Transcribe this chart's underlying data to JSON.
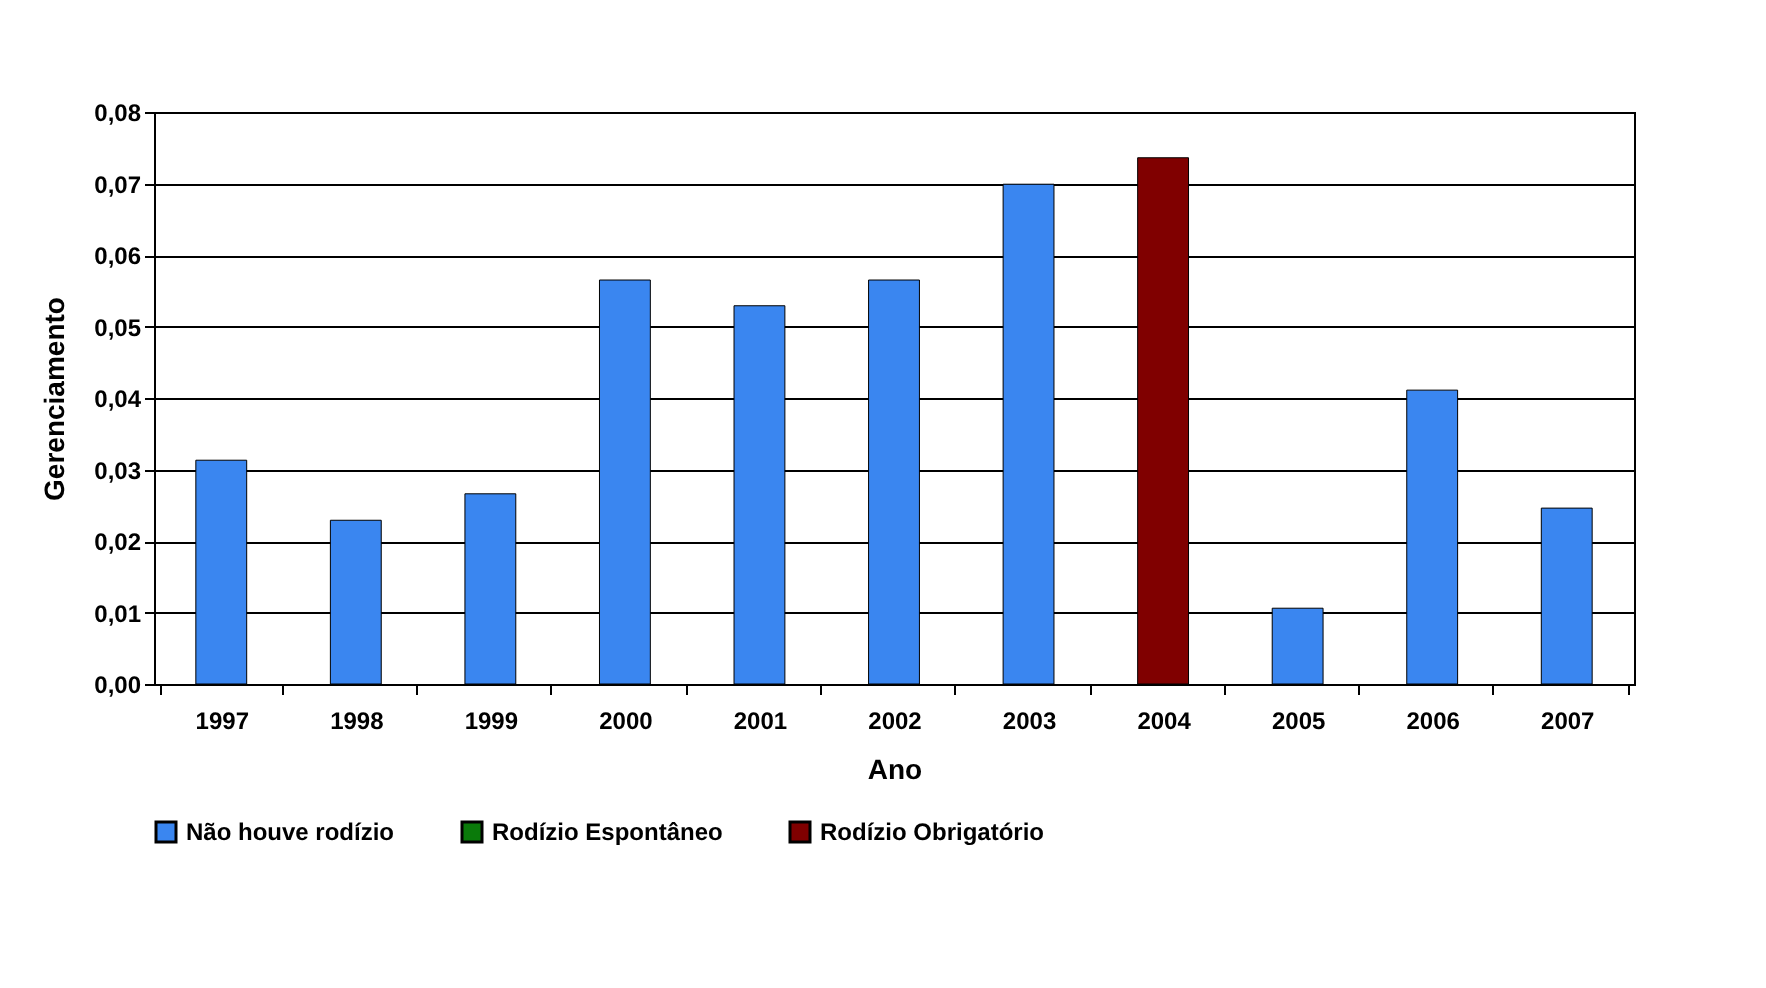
{
  "chart_data": {
    "type": "bar",
    "xlabel": "Ano",
    "ylabel": "Gerenciamento",
    "categories": [
      "1997",
      "1998",
      "1999",
      "2000",
      "2001",
      "2002",
      "2003",
      "2004",
      "2005",
      "2006",
      "2007"
    ],
    "series": [
      {
        "name": "Não houve rodízio",
        "color": "#3a86f0",
        "values": [
          0.0313,
          0.0229,
          0.0266,
          0.0565,
          0.0529,
          0.0565,
          0.0699,
          null,
          0.0106,
          0.0411,
          0.0246
        ]
      },
      {
        "name": "Rodízio Espontâneo",
        "color": "#0a7a0a",
        "values": [
          null,
          null,
          null,
          null,
          null,
          null,
          null,
          null,
          null,
          null,
          null
        ]
      },
      {
        "name": "Rodízio Obrigatório",
        "color": "#800000",
        "values": [
          null,
          null,
          null,
          null,
          null,
          null,
          null,
          0.0736,
          null,
          null,
          null
        ]
      }
    ],
    "ylim": [
      0,
      0.08
    ],
    "yticks": [
      {
        "value": 0,
        "label": "0,00"
      },
      {
        "value": 0.01,
        "label": "0,01"
      },
      {
        "value": 0.02,
        "label": "0,02"
      },
      {
        "value": 0.03,
        "label": "0,03"
      },
      {
        "value": 0.04,
        "label": "0,04"
      },
      {
        "value": 0.05,
        "label": "0,05"
      },
      {
        "value": 0.06,
        "label": "0,06"
      },
      {
        "value": 0.07,
        "label": "0,07"
      },
      {
        "value": 0.08,
        "label": "0,08"
      }
    ],
    "grid": "y",
    "legend": "bottom"
  }
}
